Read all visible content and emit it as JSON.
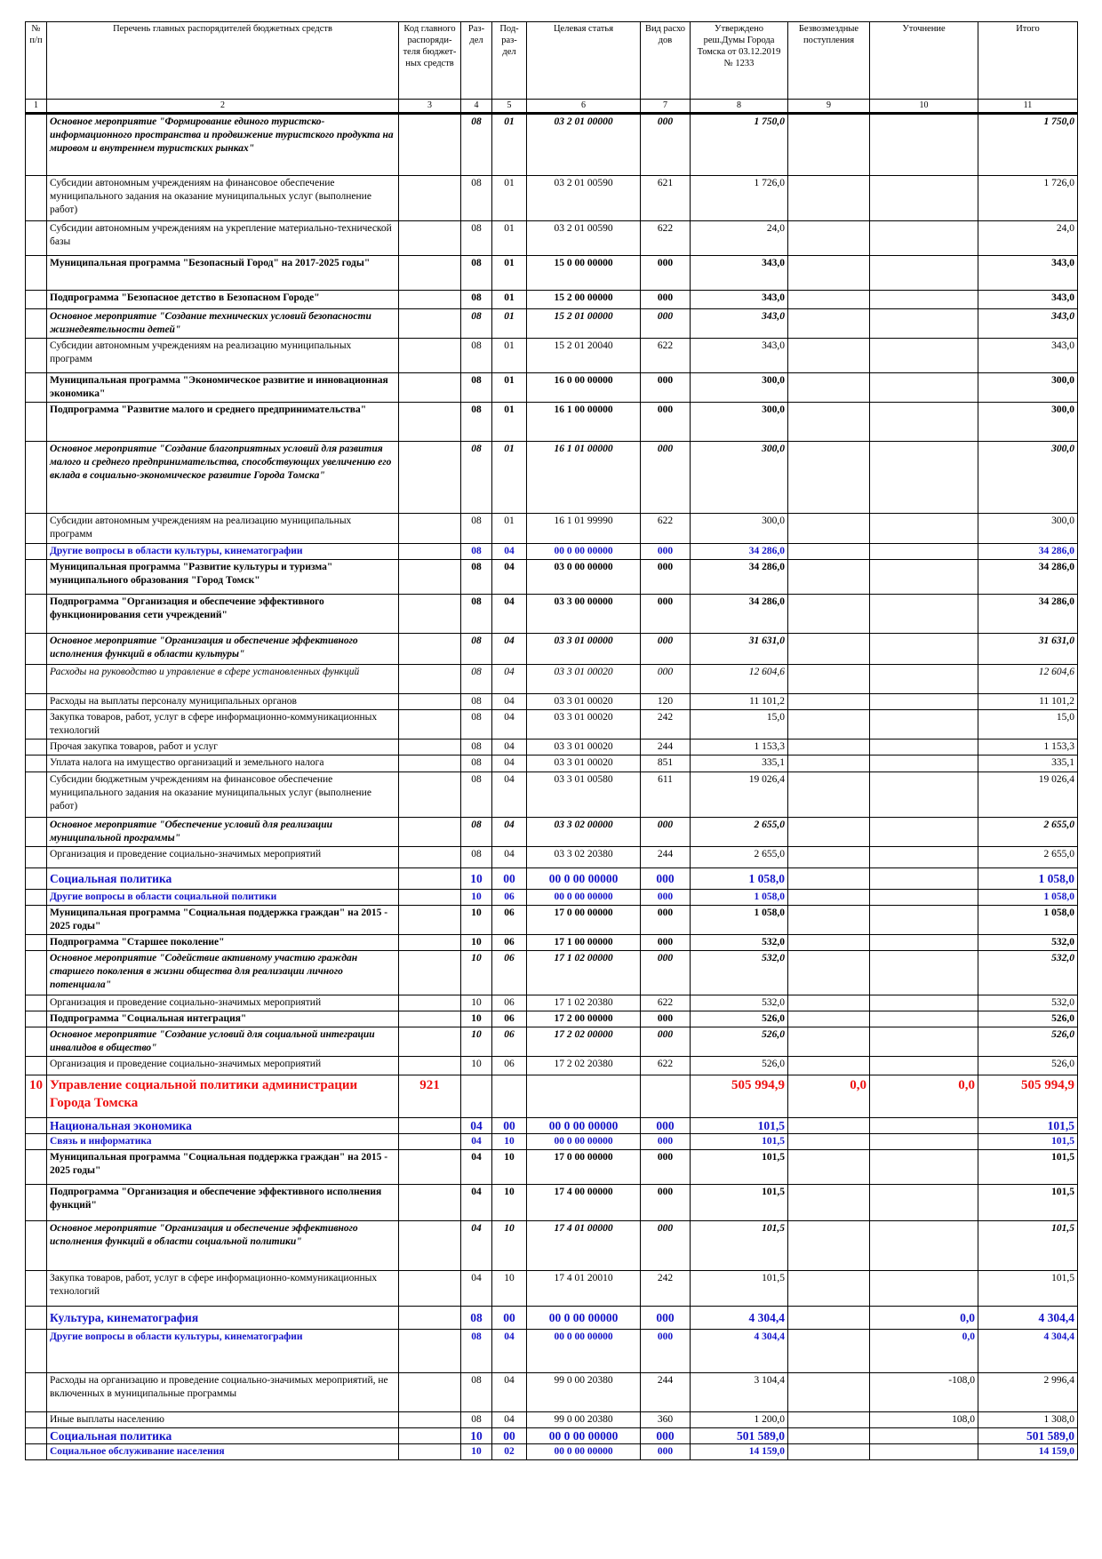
{
  "table": {
    "header": [
      "№ п/п",
      "Перечень главных распорядителей бюджетных средств",
      "Код главного распоряди-теля бюджет-ных средств",
      "Раз-дел",
      "Под-раз-дел",
      "Целевая статья",
      "Вид расхо дов",
      "Утверждено реш.Думы Города Томска от 03.12.2019 № 1233",
      "Безвозмездные поступления",
      "Уточнение",
      "Итого"
    ],
    "column_numbers": [
      1,
      2,
      3,
      4,
      5,
      6,
      7,
      8,
      9,
      10,
      11
    ],
    "rows": [
      [
        null,
        "Основное мероприятие \"Формирование единого туристско-информационного пространства и продвижение туристского продукта на мировом и внутреннем туристских рынках\"",
        null,
        "08",
        "01",
        "03 2 01 00000",
        "000",
        "1 750,0",
        null,
        null,
        "1 750,0"
      ],
      [
        null,
        "Субсидии автономным учреждениям на финансовое обеспечение муниципального задания на оказание муниципальных услуг (выполнение работ)",
        null,
        "08",
        "01",
        "03 2 01 00590",
        "621",
        "1 726,0",
        null,
        null,
        "1 726,0"
      ],
      [
        null,
        "Субсидии автономным учреждениям на укрепление материально-технической базы",
        null,
        "08",
        "01",
        "03 2 01 00590",
        "622",
        "24,0",
        null,
        null,
        "24,0"
      ],
      [
        null,
        "Муниципальная программа \"Безопасный Город\" на 2017-2025 годы\"",
        null,
        "08",
        "01",
        "15 0 00 00000",
        "000",
        "343,0",
        null,
        null,
        "343,0"
      ],
      [
        null,
        "Подпрограмма \"Безопасное детство в Безопасном Городе\"",
        null,
        "08",
        "01",
        "15 2 00 00000",
        "000",
        "343,0",
        null,
        null,
        "343,0"
      ],
      [
        null,
        "Основное мероприятие \"Создание технических условий безопасности жизнедеятельности детей\"",
        null,
        "08",
        "01",
        "15 2 01 00000",
        "000",
        "343,0",
        null,
        null,
        "343,0"
      ],
      [
        null,
        "Субсидии автономным учреждениям на реализацию муниципальных программ",
        null,
        "08",
        "01",
        "15 2 01 20040",
        "622",
        "343,0",
        null,
        null,
        "343,0"
      ],
      [
        null,
        "Муниципальная программа \"Экономическое развитие и инновационная экономика\"",
        null,
        "08",
        "01",
        "16 0 00 00000",
        "000",
        "300,0",
        null,
        null,
        "300,0"
      ],
      [
        null,
        "Подпрограмма \"Развитие малого и среднего предпринимательства\"",
        null,
        "08",
        "01",
        "16 1 00 00000",
        "000",
        "300,0",
        null,
        null,
        "300,0"
      ],
      [
        null,
        "Основное мероприятие \"Создание благоприятных условий для развития малого и среднего предпринимательства, способствующих увеличению его вклада в социально-экономическое развитие Города Томска\"",
        null,
        "08",
        "01",
        "16 1 01 00000",
        "000",
        "300,0",
        null,
        null,
        "300,0"
      ],
      [
        null,
        "Субсидии автономным учреждениям на реализацию муниципальных программ",
        null,
        "08",
        "01",
        "16 1 01 99990",
        "622",
        "300,0",
        null,
        null,
        "300,0"
      ],
      [
        null,
        "Другие вопросы в области культуры, кинематографии",
        null,
        "08",
        "04",
        "00 0 00 00000",
        "000",
        "34 286,0",
        null,
        null,
        "34 286,0"
      ],
      [
        null,
        "Муниципальная программа \"Развитие культуры и туризма\" муниципального образования \"Город Томск\"",
        null,
        "08",
        "04",
        "03 0 00 00000",
        "000",
        "34 286,0",
        null,
        null,
        "34 286,0"
      ],
      [
        null,
        "Подпрограмма \"Организация и обеспечение эффективного функционирования сети учреждений\"",
        null,
        "08",
        "04",
        "03 3 00 00000",
        "000",
        "34 286,0",
        null,
        null,
        "34 286,0"
      ],
      [
        null,
        "Основное мероприятие \"Организация и обеспечение эффективного исполнения функций в области культуры\"",
        null,
        "08",
        "04",
        "03 3 01 00000",
        "000",
        "31 631,0",
        null,
        null,
        "31 631,0"
      ],
      [
        null,
        "Расходы на руководство и управление в сфере установленных функций",
        null,
        "08",
        "04",
        "03 3 01 00020",
        "000",
        "12 604,6",
        null,
        null,
        "12 604,6"
      ],
      [
        null,
        "Расходы на выплаты персоналу муниципальных органов",
        null,
        "08",
        "04",
        "03 3 01 00020",
        "120",
        "11 101,2",
        null,
        null,
        "11 101,2"
      ],
      [
        null,
        "Закупка товаров, работ, услуг в сфере информационно-коммуникационных технологий",
        null,
        "08",
        "04",
        "03 3 01 00020",
        "242",
        "15,0",
        null,
        null,
        "15,0"
      ],
      [
        null,
        "Прочая закупка товаров, работ и услуг",
        null,
        "08",
        "04",
        "03 3 01 00020",
        "244",
        "1 153,3",
        null,
        null,
        "1 153,3"
      ],
      [
        null,
        "Уплата налога на имущество организаций и земельного налога",
        null,
        "08",
        "04",
        "03 3 01 00020",
        "851",
        "335,1",
        null,
        null,
        "335,1"
      ],
      [
        null,
        "Субсидии бюджетным учреждениям на финансовое обеспечение муниципального задания на оказание муниципальных услуг (выполнение работ)",
        null,
        "08",
        "04",
        "03 3 01 00580",
        "611",
        "19 026,4",
        null,
        null,
        "19 026,4"
      ],
      [
        null,
        "Основное мероприятие \"Обеспечение условий для реализации муниципальной программы\"",
        null,
        "08",
        "04",
        "03 3 02 00000",
        "000",
        "2 655,0",
        null,
        null,
        "2 655,0"
      ],
      [
        null,
        "Организация и проведение социально-значимых мероприятий",
        null,
        "08",
        "04",
        "03 3 02 20380",
        "244",
        "2 655,0",
        null,
        null,
        "2 655,0"
      ],
      [
        null,
        "Социальная политика",
        null,
        "10",
        "00",
        "00 0 00 00000",
        "000",
        "1 058,0",
        null,
        null,
        "1 058,0"
      ],
      [
        null,
        "Другие вопросы в области социальной политики",
        null,
        "10",
        "06",
        "00 0 00 00000",
        "000",
        "1 058,0",
        null,
        null,
        "1 058,0"
      ],
      [
        null,
        "Муниципальная программа \"Социальная поддержка граждан\" на 2015 - 2025 годы\"",
        null,
        "10",
        "06",
        "17 0 00 00000",
        "000",
        "1 058,0",
        null,
        null,
        "1 058,0"
      ],
      [
        null,
        "Подпрограмма \"Старшее поколение\"",
        null,
        "10",
        "06",
        "17 1 00 00000",
        "000",
        "532,0",
        null,
        null,
        "532,0"
      ],
      [
        null,
        "Основное мероприятие \"Содействие активному участию граждан старшего поколения в жизни общества для реализации личного потенциала\"",
        null,
        "10",
        "06",
        "17 1 02 00000",
        "000",
        "532,0",
        null,
        null,
        "532,0"
      ],
      [
        null,
        "Организация и проведение социально-значимых мероприятий",
        null,
        "10",
        "06",
        "17 1 02 20380",
        "622",
        "532,0",
        null,
        null,
        "532,0"
      ],
      [
        null,
        "Подпрограмма \"Социальная интеграция\"",
        null,
        "10",
        "06",
        "17 2 00 00000",
        "000",
        "526,0",
        null,
        null,
        "526,0"
      ],
      [
        null,
        "Основное мероприятие \"Создание условий для социальной интеграции инвалидов в общество\"",
        null,
        "10",
        "06",
        "17 2 02 00000",
        "000",
        "526,0",
        null,
        null,
        "526,0"
      ],
      [
        null,
        "Организация и проведение социально-значимых мероприятий",
        null,
        "10",
        "06",
        "17 2 02 20380",
        "622",
        "526,0",
        null,
        null,
        "526,0"
      ],
      [
        "10",
        "Управление социальной политики администрации Города Томска",
        "921",
        null,
        null,
        null,
        null,
        "505 994,9",
        "0,0",
        "0,0",
        "505 994,9"
      ],
      [
        null,
        "Национальная экономика",
        null,
        "04",
        "00",
        "00 0 00 00000",
        "000",
        "101,5",
        null,
        null,
        "101,5"
      ],
      [
        null,
        "Связь и информатика",
        null,
        "04",
        "10",
        "00 0 00 00000",
        "000",
        "101,5",
        null,
        null,
        "101,5"
      ],
      [
        null,
        "Муниципальная программа \"Социальная поддержка граждан\" на 2015 - 2025 годы\"",
        null,
        "04",
        "10",
        "17 0 00 00000",
        "000",
        "101,5",
        null,
        null,
        "101,5"
      ],
      [
        null,
        "Подпрограмма \"Организация и обеспечение эффективного исполнения функций\"",
        null,
        "04",
        "10",
        "17 4 00 00000",
        "000",
        "101,5",
        null,
        null,
        "101,5"
      ],
      [
        null,
        "Основное мероприятие \"Организация и обеспечение эффективного исполнения функций в области социальной политики\"",
        null,
        "04",
        "10",
        "17 4 01 00000",
        "000",
        "101,5",
        null,
        null,
        "101,5"
      ],
      [
        null,
        "Закупка товаров, работ, услуг в сфере информационно-коммуникационных технологий",
        null,
        "04",
        "10",
        "17 4 01 20010",
        "242",
        "101,5",
        null,
        null,
        "101,5"
      ],
      [
        null,
        "Культура, кинематография",
        null,
        "08",
        "00",
        "00 0 00 00000",
        "000",
        "4 304,4",
        null,
        "0,0",
        "4 304,4"
      ],
      [
        null,
        "Другие вопросы в области культуры, кинематографии",
        null,
        "08",
        "04",
        "00 0 00 00000",
        "000",
        "4 304,4",
        null,
        "0,0",
        "4 304,4"
      ],
      [
        null,
        "Расходы на организацию и проведение социально-значимых мероприятий, не включенных в муниципальные программы",
        null,
        "08",
        "04",
        "99 0 00 20380",
        "244",
        "3 104,4",
        null,
        "-108,0",
        "2 996,4"
      ],
      [
        null,
        "Иные выплаты населению",
        null,
        "08",
        "04",
        "99 0 00 20380",
        "360",
        "1 200,0",
        null,
        "108,0",
        "1 308,0"
      ],
      [
        null,
        "Социальная политика",
        null,
        "10",
        "00",
        "00 0 00 00000",
        "000",
        "501 589,0",
        null,
        null,
        "501 589,0"
      ],
      [
        null,
        "Социальное обслуживание населения",
        null,
        "10",
        "02",
        "00 0 00 00000",
        "000",
        "14 159,0",
        null,
        null,
        "14 159,0"
      ]
    ]
  }
}
